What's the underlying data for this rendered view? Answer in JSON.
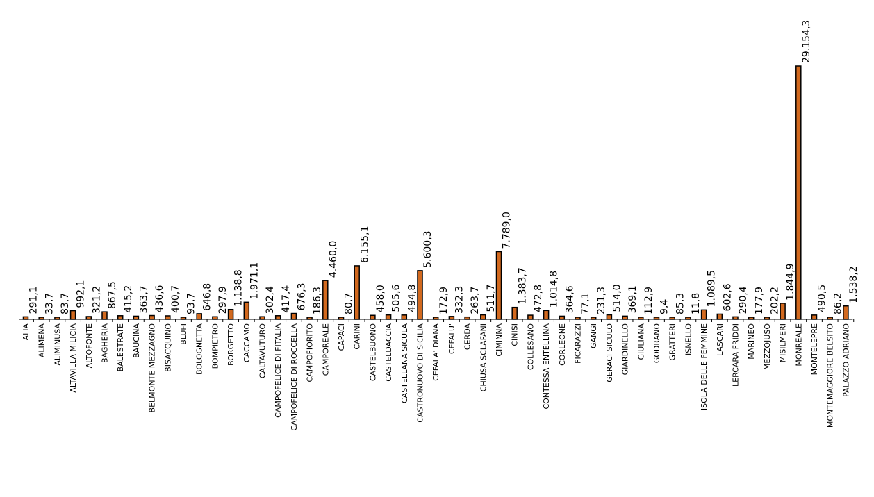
{
  "colors": {
    "bar_fill": "#D2691E",
    "bar_stroke": "#000000",
    "axis": "#000000",
    "text": "#000000"
  },
  "chart_data": {
    "type": "bar",
    "title": "",
    "xlabel": "",
    "ylabel": "",
    "grid": false,
    "legend": "none",
    "ylim": [
      0,
      29154.3
    ],
    "categories": [
      "ALIA",
      "ALIMENA",
      "ALIMINUSA",
      "ALTAVILLA MILICIA",
      "ALTOFONTE",
      "BAGHERIA",
      "BALESTRATE",
      "BAUCINA",
      "BELMONTE MEZZAGNO",
      "BISACQUINO",
      "BLUFI",
      "BOLOGNETTA",
      "BOMPIETRO",
      "BORGETTO",
      "CACCAMO",
      "CALTAVUTURO",
      "CAMPOFELICE DI FITALIA",
      "CAMPOFELICE DI ROCCELLA",
      "CAMPOFIORITO",
      "CAMPOREALE",
      "CAPACI",
      "CARINI",
      "CASTELBUONO",
      "CASTELDACCIA",
      "CASTELLANA SICULA",
      "CASTRONUOVO DI SICILIA",
      "CEFALA' DIANA",
      "CEFALU'",
      "CERDA",
      "CHIUSA SCLAFANI",
      "CIMINNA",
      "CINISI",
      "COLLESANO",
      "CONTESSA ENTELLINA",
      "CORLEONE",
      "FICARAZZI",
      "GANGI",
      "GERACI SICULO",
      "GIARDINELLO",
      "GIULIANA",
      "GODRANO",
      "GRATTERI",
      "ISNELLO",
      "ISOLA DELLE FEMMINE",
      "LASCARI",
      "LERCARA FRIDDI",
      "MARINEO",
      "MEZZOJUSO",
      "MISILMERI",
      "MONREALE",
      "MONTELEPRE",
      "MONTEMAGGIORE BELSITO",
      "PALAZZO ADRIANO"
    ],
    "values": [
      291.1,
      33.7,
      83.7,
      992.1,
      321.2,
      867.5,
      415.2,
      363.7,
      436.6,
      400.7,
      93.7,
      646.8,
      297.9,
      1138.8,
      1971.1,
      302.4,
      417.4,
      676.3,
      186.3,
      4460.0,
      80.7,
      6155.1,
      458.0,
      505.6,
      494.8,
      5600.3,
      172.9,
      332.3,
      263.7,
      511.7,
      7789.0,
      1383.7,
      472.8,
      1014.8,
      364.6,
      77.1,
      231.3,
      514.0,
      369.1,
      112.9,
      9.4,
      85.3,
      11.8,
      1089.5,
      602.6,
      290.4,
      177.9,
      202.2,
      1844.9,
      29154.3,
      490.5,
      86.2,
      1538.2
    ],
    "value_labels": [
      "291,1",
      "33,7",
      "83,7",
      "992,1",
      "321,2",
      "867,5",
      "415,2",
      "363,7",
      "436,6",
      "400,7",
      "93,7",
      "646,8",
      "297,9",
      "1.138,8",
      "1.971,1",
      "302,4",
      "417,4",
      "676,3",
      "186,3",
      "4.460,0",
      "80,7",
      "6.155,1",
      "458,0",
      "505,6",
      "494,8",
      "5.600,3",
      "172,9",
      "332,3",
      "263,7",
      "511,7",
      "7.789,0",
      "1.383,7",
      "472,8",
      "1.014,8",
      "364,6",
      "77,1",
      "231,3",
      "514,0",
      "369,1",
      "112,9",
      "9,4",
      "85,3",
      "11,8",
      "1.089,5",
      "602,6",
      "290,4",
      "177,9",
      "202,2",
      "1.844,9",
      "29.154,3",
      "490,5",
      "86,2",
      "1.538,2"
    ]
  }
}
